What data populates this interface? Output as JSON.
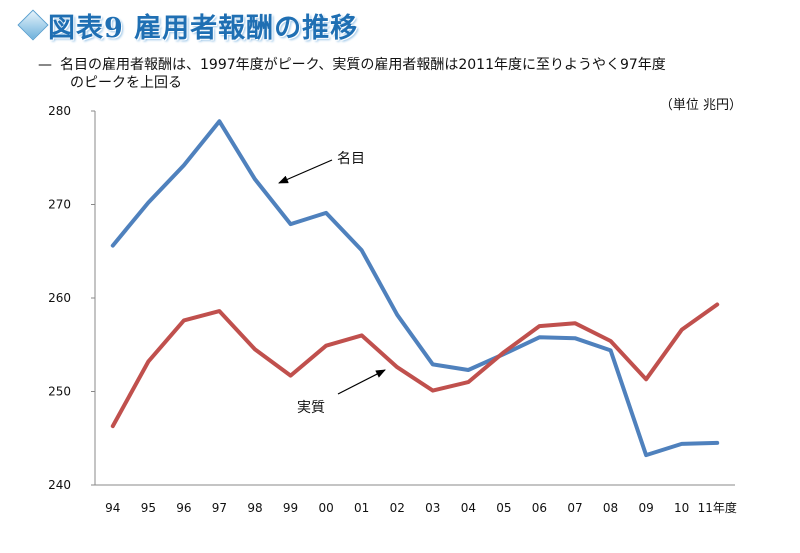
{
  "header": {
    "title": "図表9 雇用者報酬の推移",
    "subtitle_dash": "—",
    "subtitle_line1": "名目の雇用者報酬は、1997年度がピーク、実質の雇用者報酬は2011年度に至りようやく97年度",
    "subtitle_line2": "のピークを上回る",
    "unit": "（単位 兆円）"
  },
  "chart_data": {
    "type": "line",
    "categories": [
      "94",
      "95",
      "96",
      "97",
      "98",
      "99",
      "00",
      "01",
      "02",
      "03",
      "04",
      "05",
      "06",
      "07",
      "08",
      "09",
      "10",
      "11年度"
    ],
    "ylim": [
      240,
      280
    ],
    "yticks": [
      240,
      250,
      260,
      270,
      280
    ],
    "grid": false,
    "series": [
      {
        "name": "名目",
        "color": "#4f81bd",
        "values": [
          265.6,
          270.2,
          274.2,
          278.9,
          272.7,
          267.9,
          269.1,
          265.1,
          258.2,
          252.9,
          252.3,
          254.0,
          255.8,
          255.7,
          254.4,
          243.2,
          244.4,
          244.5
        ]
      },
      {
        "name": "実質",
        "color": "#c0504d",
        "values": [
          246.3,
          253.2,
          257.6,
          258.6,
          254.5,
          251.7,
          254.9,
          256.0,
          252.6,
          250.1,
          251.0,
          254.2,
          257.0,
          257.3,
          255.4,
          251.3,
          256.6,
          259.3
        ]
      }
    ],
    "annotations": [
      {
        "text": "名目",
        "series": 0
      },
      {
        "text": "実質",
        "series": 1
      }
    ]
  }
}
